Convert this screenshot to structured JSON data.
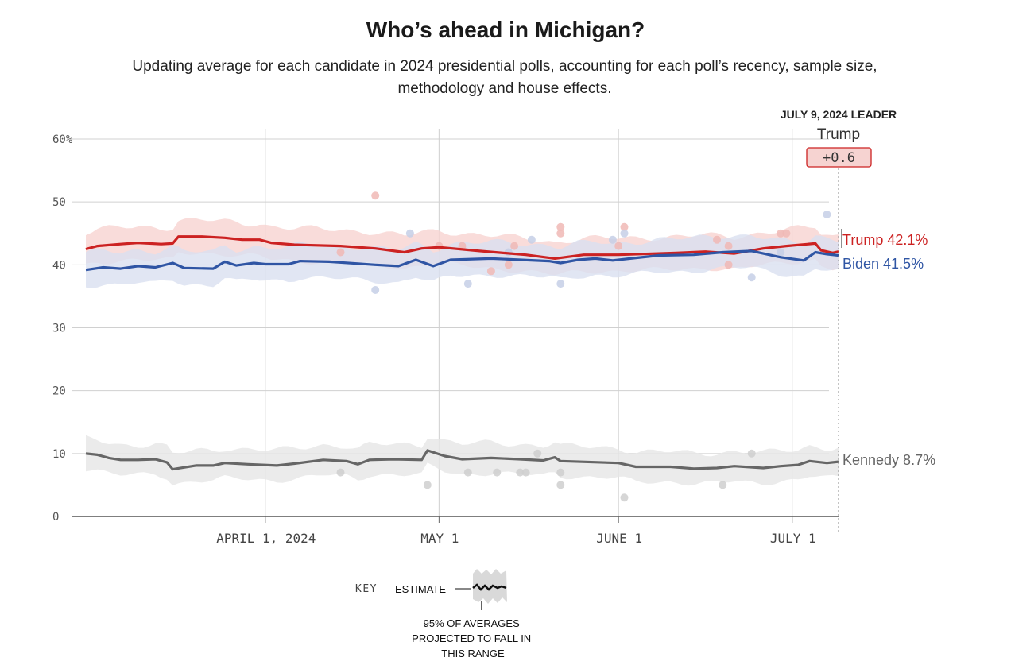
{
  "header": {
    "title": "Who’s ahead in Michigan?",
    "subtitle": "Updating average for each candidate in 2024 presidential polls, accounting for each poll’s recency, sample size, methodology and house effects."
  },
  "leader": {
    "date_label": "JULY 9, 2024 LEADER",
    "name": "Trump",
    "margin": "+0.6"
  },
  "key": {
    "label": "KEY",
    "estimate_label": "ESTIMATE",
    "range_label": "95% OF AVERAGES PROJECTED TO FALL IN THIS RANGE"
  },
  "colors": {
    "trump": "#cc2222",
    "biden": "#2f55a4",
    "kennedy": "#666666"
  },
  "chart_data": {
    "type": "line",
    "title": "Who’s ahead in Michigan?",
    "y_ticks": [
      "60%",
      "50",
      "40",
      "30",
      "20",
      "10",
      "0"
    ],
    "x_ticks": [
      "APRIL 1, 2024",
      "MAY 1",
      "JUNE 1",
      "JULY 1"
    ],
    "ylim": [
      0,
      60
    ],
    "xlim": [
      "2024-03-01",
      "2024-07-09"
    ],
    "grid": true,
    "series": [
      {
        "name": "Trump",
        "end_label": "Trump 42.1%",
        "color": "#cc2222",
        "band": 2.6,
        "points": [
          [
            "2024-03-01",
            42.5
          ],
          [
            "2024-03-03",
            43.0
          ],
          [
            "2024-03-07",
            43.3
          ],
          [
            "2024-03-10",
            43.5
          ],
          [
            "2024-03-14",
            43.3
          ],
          [
            "2024-03-16",
            43.4
          ],
          [
            "2024-03-17",
            44.5
          ],
          [
            "2024-03-21",
            44.5
          ],
          [
            "2024-03-25",
            44.3
          ],
          [
            "2024-03-28",
            44.0
          ],
          [
            "2024-03-31",
            44.0
          ],
          [
            "2024-04-02",
            43.5
          ],
          [
            "2024-04-06",
            43.2
          ],
          [
            "2024-04-14",
            43.0
          ],
          [
            "2024-04-20",
            42.6
          ],
          [
            "2024-04-25",
            42.0
          ],
          [
            "2024-04-28",
            42.6
          ],
          [
            "2024-05-01",
            42.8
          ],
          [
            "2024-05-08",
            42.2
          ],
          [
            "2024-05-16",
            41.6
          ],
          [
            "2024-05-21",
            41.0
          ],
          [
            "2024-05-26",
            41.6
          ],
          [
            "2024-06-01",
            41.6
          ],
          [
            "2024-06-11",
            41.9
          ],
          [
            "2024-06-16",
            42.1
          ],
          [
            "2024-06-21",
            41.8
          ],
          [
            "2024-06-26",
            42.6
          ],
          [
            "2024-06-30",
            43.0
          ],
          [
            "2024-07-05",
            43.4
          ],
          [
            "2024-07-06",
            42.3
          ],
          [
            "2024-07-08",
            41.9
          ],
          [
            "2024-07-09",
            42.1
          ]
        ]
      },
      {
        "name": "Biden",
        "end_label": "Biden 41.5%",
        "color": "#2f55a4",
        "band": 2.6,
        "points": [
          [
            "2024-03-01",
            39.2
          ],
          [
            "2024-03-04",
            39.6
          ],
          [
            "2024-03-07",
            39.4
          ],
          [
            "2024-03-10",
            39.8
          ],
          [
            "2024-03-13",
            39.6
          ],
          [
            "2024-03-16",
            40.3
          ],
          [
            "2024-03-18",
            39.5
          ],
          [
            "2024-03-23",
            39.4
          ],
          [
            "2024-03-25",
            40.5
          ],
          [
            "2024-03-27",
            39.9
          ],
          [
            "2024-03-30",
            40.3
          ],
          [
            "2024-04-01",
            40.1
          ],
          [
            "2024-04-05",
            40.1
          ],
          [
            "2024-04-07",
            40.6
          ],
          [
            "2024-04-12",
            40.5
          ],
          [
            "2024-04-17",
            40.2
          ],
          [
            "2024-04-20",
            40.0
          ],
          [
            "2024-04-24",
            39.8
          ],
          [
            "2024-04-27",
            40.8
          ],
          [
            "2024-04-30",
            39.8
          ],
          [
            "2024-05-03",
            40.8
          ],
          [
            "2024-05-10",
            41.0
          ],
          [
            "2024-05-20",
            40.6
          ],
          [
            "2024-05-22",
            40.3
          ],
          [
            "2024-05-25",
            40.8
          ],
          [
            "2024-05-28",
            41.0
          ],
          [
            "2024-05-31",
            40.7
          ],
          [
            "2024-06-04",
            41.1
          ],
          [
            "2024-06-08",
            41.5
          ],
          [
            "2024-06-14",
            41.6
          ],
          [
            "2024-06-19",
            42.0
          ],
          [
            "2024-06-24",
            42.2
          ],
          [
            "2024-06-26",
            41.8
          ],
          [
            "2024-06-29",
            41.2
          ],
          [
            "2024-07-03",
            40.7
          ],
          [
            "2024-07-05",
            42.0
          ],
          [
            "2024-07-07",
            41.7
          ],
          [
            "2024-07-09",
            41.5
          ]
        ]
      },
      {
        "name": "Kennedy",
        "end_label": "Kennedy 8.7%",
        "color": "#666666",
        "band": 2.4,
        "points": [
          [
            "2024-03-01",
            10.0
          ],
          [
            "2024-03-03",
            9.8
          ],
          [
            "2024-03-05",
            9.3
          ],
          [
            "2024-03-07",
            9.0
          ],
          [
            "2024-03-10",
            9.0
          ],
          [
            "2024-03-13",
            9.1
          ],
          [
            "2024-03-15",
            8.6
          ],
          [
            "2024-03-16",
            7.5
          ],
          [
            "2024-03-20",
            8.1
          ],
          [
            "2024-03-23",
            8.1
          ],
          [
            "2024-03-25",
            8.5
          ],
          [
            "2024-03-29",
            8.3
          ],
          [
            "2024-04-03",
            8.1
          ],
          [
            "2024-04-06",
            8.4
          ],
          [
            "2024-04-11",
            9.0
          ],
          [
            "2024-04-15",
            8.8
          ],
          [
            "2024-04-17",
            8.3
          ],
          [
            "2024-04-19",
            9.0
          ],
          [
            "2024-04-23",
            9.1
          ],
          [
            "2024-04-28",
            9.0
          ],
          [
            "2024-04-29",
            10.5
          ],
          [
            "2024-05-02",
            9.6
          ],
          [
            "2024-05-05",
            9.1
          ],
          [
            "2024-05-10",
            9.3
          ],
          [
            "2024-05-15",
            9.1
          ],
          [
            "2024-05-19",
            8.9
          ],
          [
            "2024-05-21",
            9.4
          ],
          [
            "2024-05-22",
            8.8
          ],
          [
            "2024-06-01",
            8.5
          ],
          [
            "2024-06-04",
            7.9
          ],
          [
            "2024-06-10",
            7.9
          ],
          [
            "2024-06-14",
            7.6
          ],
          [
            "2024-06-18",
            7.7
          ],
          [
            "2024-06-21",
            8.0
          ],
          [
            "2024-06-26",
            7.7
          ],
          [
            "2024-06-29",
            8.0
          ],
          [
            "2024-07-02",
            8.2
          ],
          [
            "2024-07-04",
            8.8
          ],
          [
            "2024-07-07",
            8.5
          ],
          [
            "2024-07-09",
            8.7
          ]
        ]
      }
    ],
    "polls": [
      {
        "series": "Trump",
        "date": "2024-04-20",
        "value": 51
      },
      {
        "series": "Trump",
        "date": "2024-04-14",
        "value": 42
      },
      {
        "series": "Trump",
        "date": "2024-05-01",
        "value": 43
      },
      {
        "series": "Trump",
        "date": "2024-05-05",
        "value": 43
      },
      {
        "series": "Trump",
        "date": "2024-05-10",
        "value": 39
      },
      {
        "series": "Trump",
        "date": "2024-05-13",
        "value": 40
      },
      {
        "series": "Trump",
        "date": "2024-05-14",
        "value": 43
      },
      {
        "series": "Trump",
        "date": "2024-05-22",
        "value": 46
      },
      {
        "series": "Trump",
        "date": "2024-05-22",
        "value": 45
      },
      {
        "series": "Trump",
        "date": "2024-06-01",
        "value": 43
      },
      {
        "series": "Trump",
        "date": "2024-06-02",
        "value": 46
      },
      {
        "series": "Trump",
        "date": "2024-06-18",
        "value": 44
      },
      {
        "series": "Trump",
        "date": "2024-06-20",
        "value": 43
      },
      {
        "series": "Trump",
        "date": "2024-06-20",
        "value": 40
      },
      {
        "series": "Trump",
        "date": "2024-06-29",
        "value": 45
      },
      {
        "series": "Trump",
        "date": "2024-06-30",
        "value": 45
      },
      {
        "series": "Biden",
        "date": "2024-04-20",
        "value": 36
      },
      {
        "series": "Biden",
        "date": "2024-04-26",
        "value": 45
      },
      {
        "series": "Biden",
        "date": "2024-05-06",
        "value": 37
      },
      {
        "series": "Biden",
        "date": "2024-05-13",
        "value": 42
      },
      {
        "series": "Biden",
        "date": "2024-05-17",
        "value": 44
      },
      {
        "series": "Biden",
        "date": "2024-05-22",
        "value": 37
      },
      {
        "series": "Biden",
        "date": "2024-05-31",
        "value": 44
      },
      {
        "series": "Biden",
        "date": "2024-06-02",
        "value": 45
      },
      {
        "series": "Biden",
        "date": "2024-06-24",
        "value": 38
      },
      {
        "series": "Biden",
        "date": "2024-06-29",
        "value": 42
      },
      {
        "series": "Biden",
        "date": "2024-07-07",
        "value": 48
      },
      {
        "series": "Kennedy",
        "date": "2024-04-14",
        "value": 7
      },
      {
        "series": "Kennedy",
        "date": "2024-04-29",
        "value": 5
      },
      {
        "series": "Kennedy",
        "date": "2024-05-06",
        "value": 7
      },
      {
        "series": "Kennedy",
        "date": "2024-05-11",
        "value": 7
      },
      {
        "series": "Kennedy",
        "date": "2024-05-15",
        "value": 7
      },
      {
        "series": "Kennedy",
        "date": "2024-05-16",
        "value": 7
      },
      {
        "series": "Kennedy",
        "date": "2024-05-18",
        "value": 10
      },
      {
        "series": "Kennedy",
        "date": "2024-05-22",
        "value": 7
      },
      {
        "series": "Kennedy",
        "date": "2024-05-22",
        "value": 5
      },
      {
        "series": "Kennedy",
        "date": "2024-06-02",
        "value": 3
      },
      {
        "series": "Kennedy",
        "date": "2024-06-19",
        "value": 5
      },
      {
        "series": "Kennedy",
        "date": "2024-06-24",
        "value": 10
      }
    ]
  }
}
